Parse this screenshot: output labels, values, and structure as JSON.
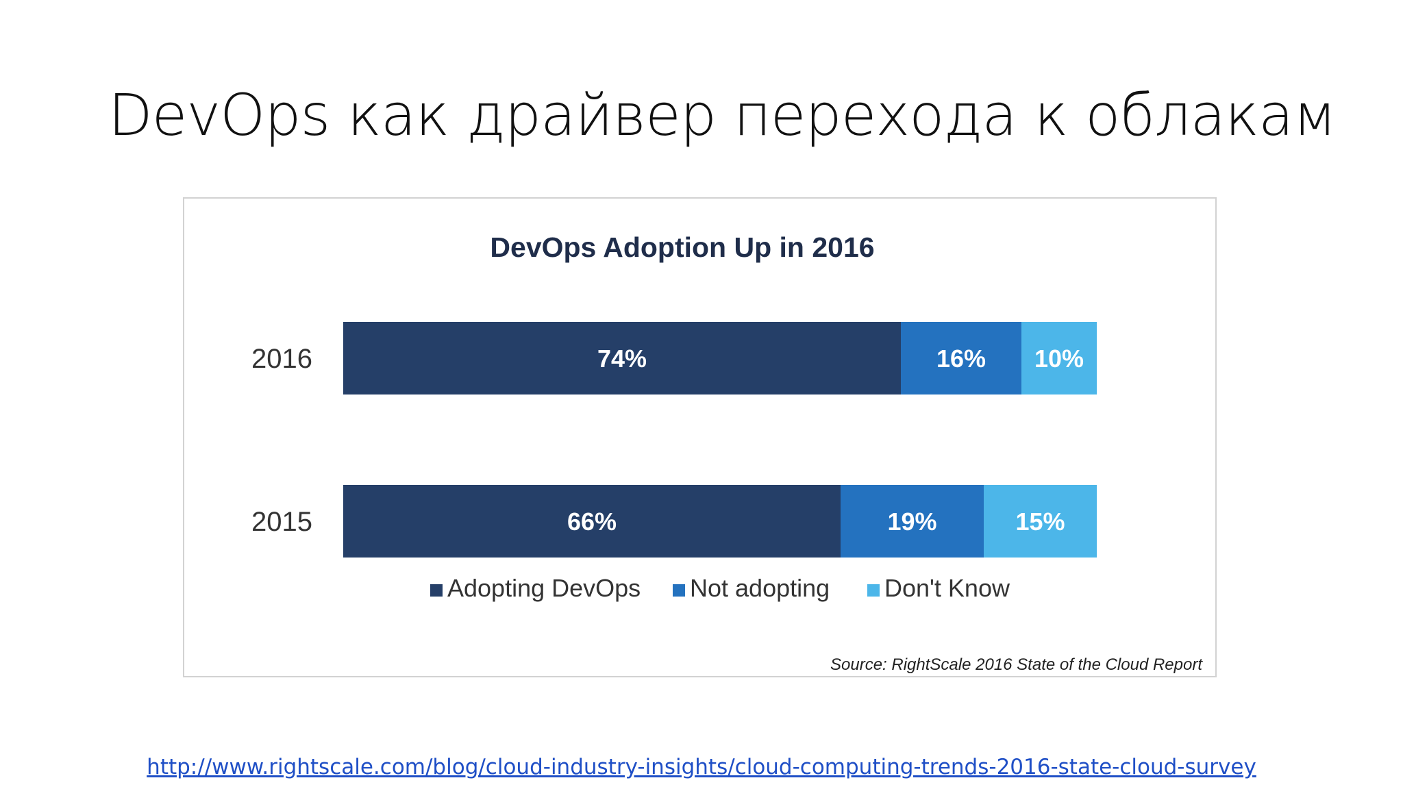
{
  "slide": {
    "title": "DevOps как драйвер перехода к облакам",
    "link": "http://www.rightscale.com/blog/cloud-industry-insights/cloud-computing-trends-2016-state-cloud-survey"
  },
  "colors": {
    "adopting": "#253f68",
    "not_adopting": "#2472bf",
    "dont_know": "#4cb6e9",
    "title_text": "#1f2d4a",
    "axis_text": "#333333",
    "bar_label": "#ffffff",
    "source_text": "#222222",
    "link": "#1f4fc6"
  },
  "chart_data": {
    "type": "bar",
    "orientation": "horizontal",
    "stacked": true,
    "title": "DevOps Adoption Up in 2016",
    "categories": [
      "2016",
      "2015"
    ],
    "series": [
      {
        "name": "Adopting DevOps",
        "values": [
          74,
          66
        ],
        "labels": [
          "74%",
          "66%"
        ],
        "color": "#253f68"
      },
      {
        "name": "Not adopting",
        "values": [
          16,
          19
        ],
        "labels": [
          "16%",
          "19%"
        ],
        "color": "#2472bf"
      },
      {
        "name": "Don't Know",
        "values": [
          10,
          15
        ],
        "labels": [
          "10%",
          "15%"
        ],
        "color": "#4cb6e9"
      }
    ],
    "xlim": [
      0,
      100
    ],
    "unit": "%",
    "legend_position": "bottom",
    "grid": false,
    "source": "Source: RightScale 2016 State of the Cloud Report"
  }
}
